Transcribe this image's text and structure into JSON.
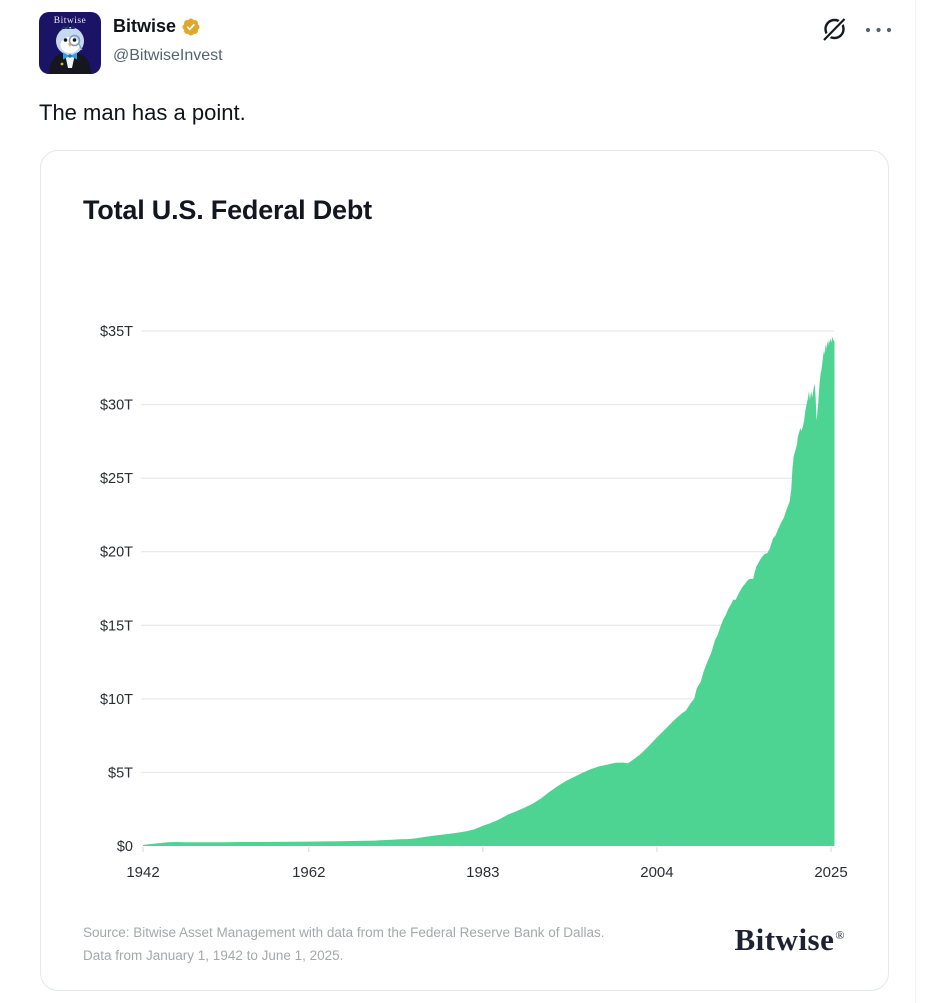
{
  "tweet": {
    "author": {
      "name": "Bitwise",
      "handle": "@BitwiseInvest",
      "verified_badge": "gold-checkmark",
      "avatar": {
        "label": "Bitwise",
        "bg_color": "#1b1365"
      }
    },
    "text": "The man has a point.",
    "actions": {
      "grok_icon": "grok-logo",
      "more_icon": "three-dots-menu"
    }
  },
  "chart_card": {
    "brand": "Bitwise",
    "reg_mark": "®"
  },
  "colors": {
    "area_green": "#4dd492",
    "grid_line": "#e4e4e4",
    "tick_line": "#d9d9d9",
    "axis_label": "#2b2e33",
    "badge_gold": "#dfa82c",
    "icon_dark": "#0f1419",
    "icon_gray": "#536471"
  },
  "chart_data": {
    "type": "area",
    "title": "Total U.S. Federal Debt",
    "xlabel": "",
    "ylabel": "",
    "unit": "trillion USD",
    "x_range": [
      1942,
      2025.42
    ],
    "y_range": [
      0,
      35
    ],
    "grid": "horizontal",
    "legend": "none",
    "x_ticks": [
      1942,
      1962,
      1983,
      2004,
      2025
    ],
    "y_ticks": [
      {
        "label": "$35T",
        "value": 35
      },
      {
        "label": "$30T",
        "value": 30
      },
      {
        "label": "$25T",
        "value": 25
      },
      {
        "label": "$20T",
        "value": 20
      },
      {
        "label": "$15T",
        "value": 15
      },
      {
        "label": "$10T",
        "value": 10
      },
      {
        "label": "$5T",
        "value": 5
      },
      {
        "label": "$0",
        "value": 0
      }
    ],
    "source_line1": "Source: Bitwise Asset Management with data from the Federal Reserve Bank of Dallas.",
    "source_line2": "Data from January 1, 1942 to June 1, 2025.",
    "series": [
      {
        "name": "Total U.S. Federal Debt",
        "points": [
          [
            1942,
            0.07
          ],
          [
            1943,
            0.14
          ],
          [
            1944,
            0.2
          ],
          [
            1945,
            0.26
          ],
          [
            1946,
            0.27
          ],
          [
            1947,
            0.26
          ],
          [
            1948,
            0.25
          ],
          [
            1950,
            0.26
          ],
          [
            1952,
            0.26
          ],
          [
            1954,
            0.27
          ],
          [
            1956,
            0.27
          ],
          [
            1958,
            0.28
          ],
          [
            1960,
            0.29
          ],
          [
            1962,
            0.3
          ],
          [
            1964,
            0.31
          ],
          [
            1966,
            0.32
          ],
          [
            1968,
            0.35
          ],
          [
            1970,
            0.37
          ],
          [
            1971,
            0.4
          ],
          [
            1972,
            0.43
          ],
          [
            1973,
            0.46
          ],
          [
            1974,
            0.47
          ],
          [
            1975,
            0.53
          ],
          [
            1976,
            0.62
          ],
          [
            1977,
            0.7
          ],
          [
            1978,
            0.77
          ],
          [
            1979,
            0.83
          ],
          [
            1980,
            0.91
          ],
          [
            1981,
            1.0
          ],
          [
            1982,
            1.14
          ],
          [
            1983,
            1.38
          ],
          [
            1984,
            1.57
          ],
          [
            1985,
            1.82
          ],
          [
            1986,
            2.13
          ],
          [
            1987,
            2.35
          ],
          [
            1988,
            2.6
          ],
          [
            1989,
            2.87
          ],
          [
            1990,
            3.23
          ],
          [
            1991,
            3.67
          ],
          [
            1992,
            4.06
          ],
          [
            1993,
            4.41
          ],
          [
            1994,
            4.69
          ],
          [
            1995,
            4.97
          ],
          [
            1996,
            5.22
          ],
          [
            1997,
            5.41
          ],
          [
            1998,
            5.53
          ],
          [
            1999,
            5.66
          ],
          [
            2000,
            5.67
          ],
          [
            2000.5,
            5.62
          ],
          [
            2001,
            5.81
          ],
          [
            2002,
            6.23
          ],
          [
            2003,
            6.78
          ],
          [
            2004,
            7.38
          ],
          [
            2005,
            7.93
          ],
          [
            2006,
            8.51
          ],
          [
            2007,
            9.01
          ],
          [
            2007.5,
            9.2
          ],
          [
            2008,
            9.65
          ],
          [
            2008.5,
            10.02
          ],
          [
            2008.8,
            10.7
          ],
          [
            2009,
            10.9
          ],
          [
            2009.3,
            11.2
          ],
          [
            2009.6,
            11.8
          ],
          [
            2010,
            12.4
          ],
          [
            2010.3,
            12.8
          ],
          [
            2010.6,
            13.2
          ],
          [
            2011,
            14.0
          ],
          [
            2011.3,
            14.3
          ],
          [
            2011.6,
            14.8
          ],
          [
            2012,
            15.4
          ],
          [
            2012.3,
            15.7
          ],
          [
            2012.6,
            16.1
          ],
          [
            2013,
            16.5
          ],
          [
            2013.2,
            16.74
          ],
          [
            2013.5,
            16.74
          ],
          [
            2013.8,
            17.1
          ],
          [
            2014,
            17.3
          ],
          [
            2014.3,
            17.6
          ],
          [
            2014.6,
            17.8
          ],
          [
            2015,
            18.1
          ],
          [
            2015.3,
            18.15
          ],
          [
            2015.6,
            18.15
          ],
          [
            2015.8,
            18.6
          ],
          [
            2016,
            19.0
          ],
          [
            2016.3,
            19.3
          ],
          [
            2016.6,
            19.6
          ],
          [
            2017,
            19.85
          ],
          [
            2017.3,
            19.9
          ],
          [
            2017.6,
            20.2
          ],
          [
            2018,
            20.9
          ],
          [
            2018.3,
            21.1
          ],
          [
            2018.6,
            21.5
          ],
          [
            2019,
            22.0
          ],
          [
            2019.3,
            22.3
          ],
          [
            2019.6,
            22.8
          ],
          [
            2019.8,
            23.1
          ],
          [
            2020,
            23.4
          ],
          [
            2020.2,
            24.2
          ],
          [
            2020.35,
            25.7
          ],
          [
            2020.5,
            26.5
          ],
          [
            2020.7,
            26.9
          ],
          [
            2020.9,
            27.3
          ],
          [
            2021,
            27.8
          ],
          [
            2021.15,
            28.1
          ],
          [
            2021.3,
            28.4
          ],
          [
            2021.45,
            28.2
          ],
          [
            2021.6,
            28.5
          ],
          [
            2021.75,
            28.9
          ],
          [
            2021.9,
            29.6
          ],
          [
            2022.05,
            30.0
          ],
          [
            2022.2,
            30.4
          ],
          [
            2022.35,
            30.9
          ],
          [
            2022.45,
            30.3
          ],
          [
            2022.6,
            30.9
          ],
          [
            2022.75,
            30.5
          ],
          [
            2022.9,
            31.1
          ],
          [
            2023.05,
            31.4
          ],
          [
            2023.15,
            30.4
          ],
          [
            2023.25,
            28.9
          ],
          [
            2023.35,
            29.4
          ],
          [
            2023.45,
            30.1
          ],
          [
            2023.55,
            30.9
          ],
          [
            2023.65,
            31.6
          ],
          [
            2023.75,
            32.1
          ],
          [
            2023.85,
            32.4
          ],
          [
            2023.95,
            32.8
          ],
          [
            2024.05,
            33.3
          ],
          [
            2024.15,
            33.7
          ],
          [
            2024.25,
            33.4
          ],
          [
            2024.35,
            34.1
          ],
          [
            2024.45,
            33.8
          ],
          [
            2024.55,
            34.3
          ],
          [
            2024.65,
            34.0
          ],
          [
            2024.75,
            34.4
          ],
          [
            2024.85,
            34.2
          ],
          [
            2024.95,
            34.5
          ],
          [
            2025.05,
            34.2
          ],
          [
            2025.15,
            34.6
          ],
          [
            2025.25,
            34.4
          ],
          [
            2025.42,
            34.3
          ]
        ]
      }
    ]
  }
}
